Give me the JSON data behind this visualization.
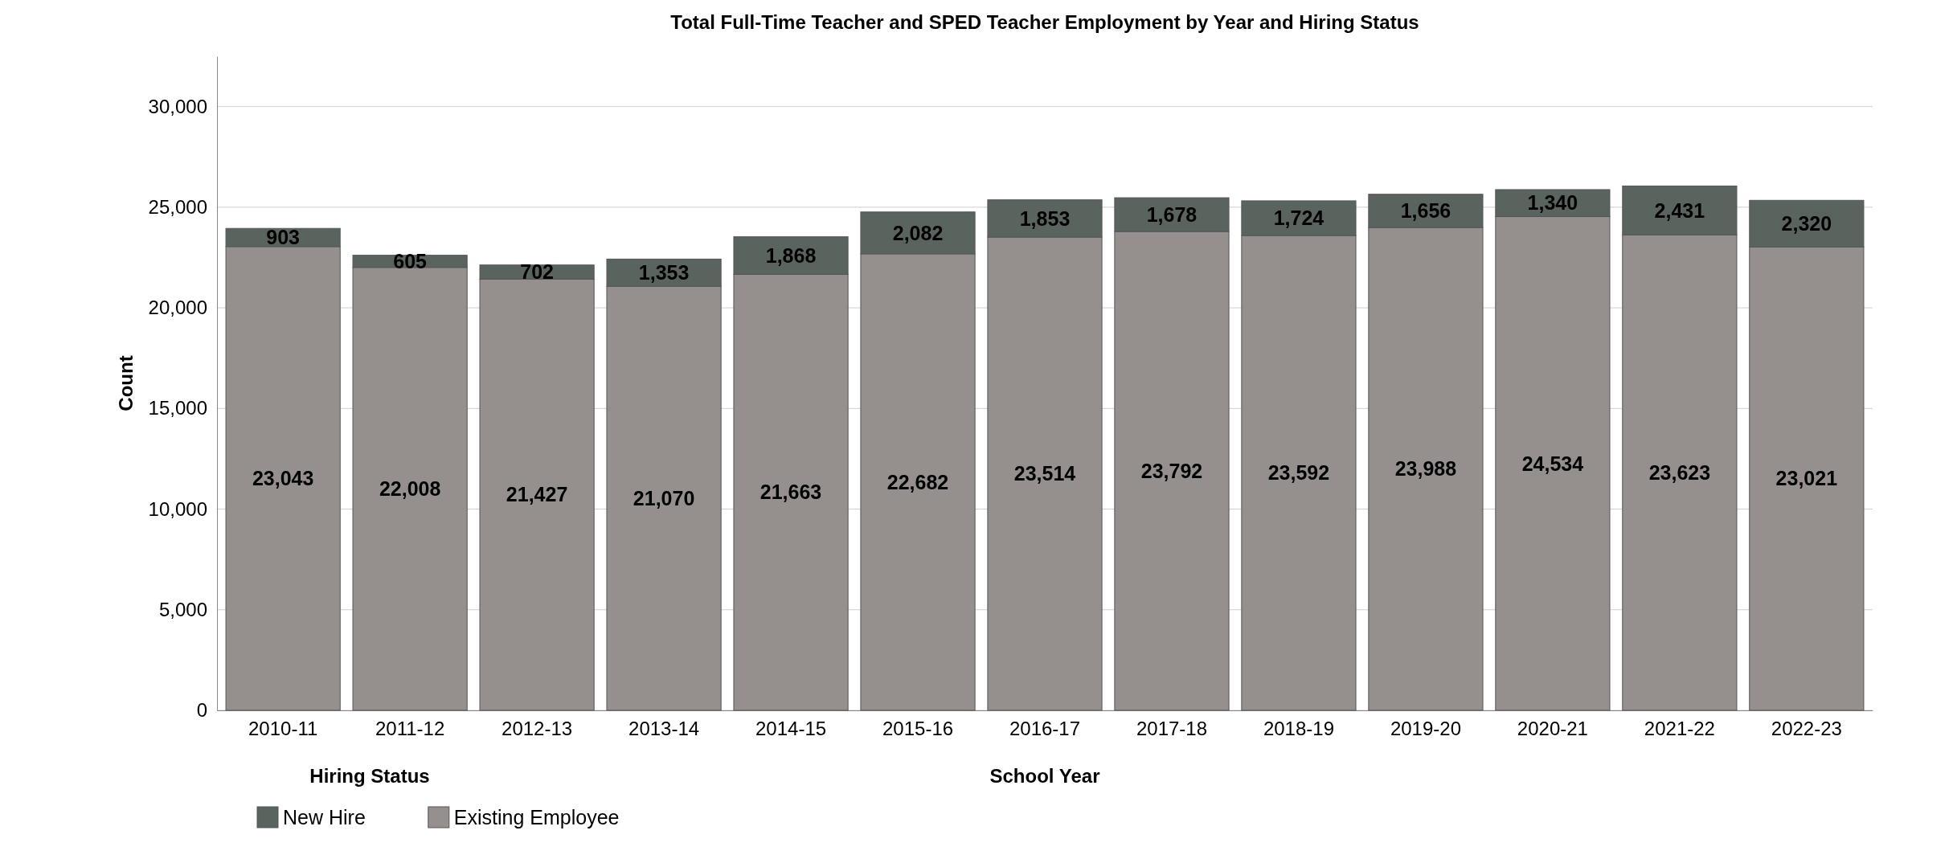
{
  "chart_data": {
    "type": "bar",
    "title": "Total Full-Time Teacher and SPED Teacher Employment by Year and Hiring Status",
    "xlabel": "School Year",
    "ylabel": "Count",
    "legend_title": "Hiring Status",
    "categories": [
      "2010-11",
      "2011-12",
      "2012-13",
      "2013-14",
      "2014-15",
      "2015-16",
      "2016-17",
      "2017-18",
      "2018-19",
      "2019-20",
      "2020-21",
      "2021-22",
      "2022-23"
    ],
    "series": [
      {
        "name": "Existing Employee",
        "color": "#958f8e",
        "values": [
          23043,
          22008,
          21427,
          21070,
          21663,
          22682,
          23514,
          23792,
          23592,
          23988,
          24534,
          23623,
          23021
        ],
        "value_labels": [
          "23,043",
          "22,008",
          "21,427",
          "21,070",
          "21,663",
          "22,682",
          "23,514",
          "23,792",
          "23,592",
          "23,988",
          "24,534",
          "23,623",
          "23,021"
        ]
      },
      {
        "name": "New Hire",
        "color": "#5a645e",
        "values": [
          903,
          605,
          702,
          1353,
          1868,
          2082,
          1853,
          1678,
          1724,
          1656,
          1340,
          2431,
          2320
        ],
        "value_labels": [
          "903",
          "605",
          "702",
          "1,353",
          "1,868",
          "2,082",
          "1,853",
          "1,678",
          "1,724",
          "1,656",
          "1,340",
          "2,431",
          "2,320"
        ]
      }
    ],
    "stacked": true,
    "ylim": [
      0,
      32500
    ],
    "yticks": [
      {
        "value": 0,
        "label": "0"
      },
      {
        "value": 5000,
        "label": "5,000"
      },
      {
        "value": 10000,
        "label": "10,000"
      },
      {
        "value": 15000,
        "label": "15,000"
      },
      {
        "value": 20000,
        "label": "20,000"
      },
      {
        "value": 25000,
        "label": "25,000"
      },
      {
        "value": 30000,
        "label": "30,000"
      }
    ],
    "grid": "y",
    "legend": "bottom left"
  }
}
